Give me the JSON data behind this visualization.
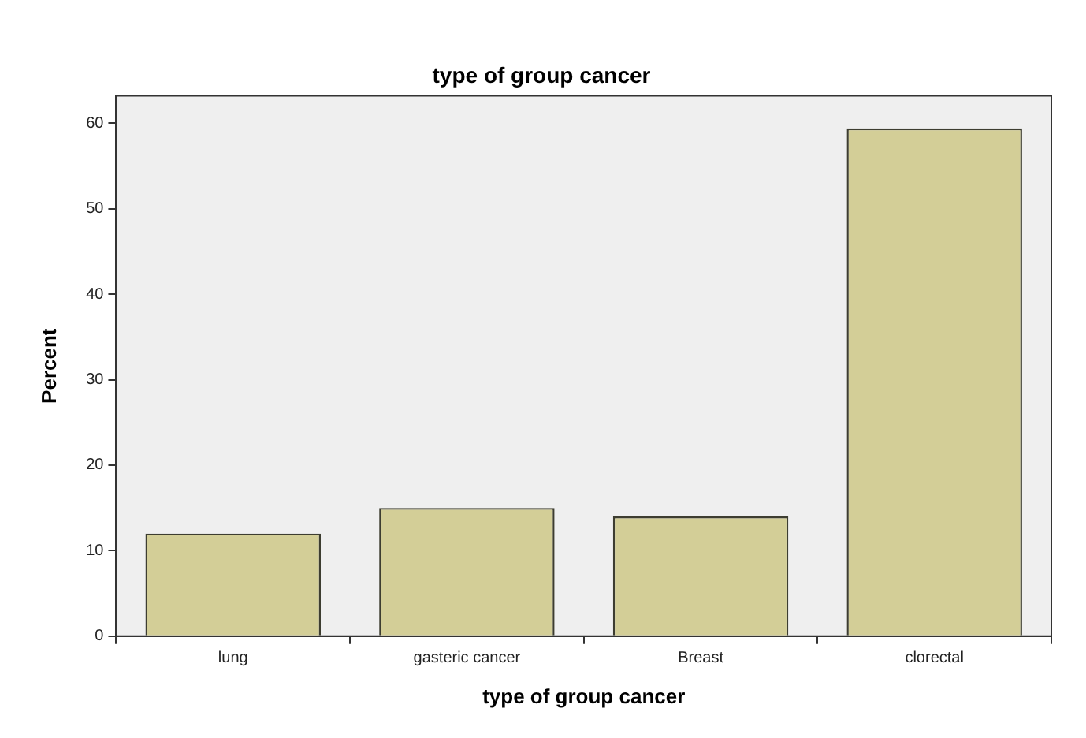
{
  "chart_data": {
    "type": "bar",
    "title": "type of group cancer",
    "xlabel": "type of group cancer",
    "ylabel": "Percent",
    "categories": [
      "lung",
      "gasteric cancer",
      "Breast",
      "clorectal"
    ],
    "values": [
      12,
      15,
      14,
      59.4
    ],
    "color": "#d3ce97",
    "ylim": [
      0,
      63.2
    ],
    "yticks": [
      0,
      10,
      20,
      30,
      40,
      50,
      60
    ],
    "grid": false,
    "legend": false
  }
}
